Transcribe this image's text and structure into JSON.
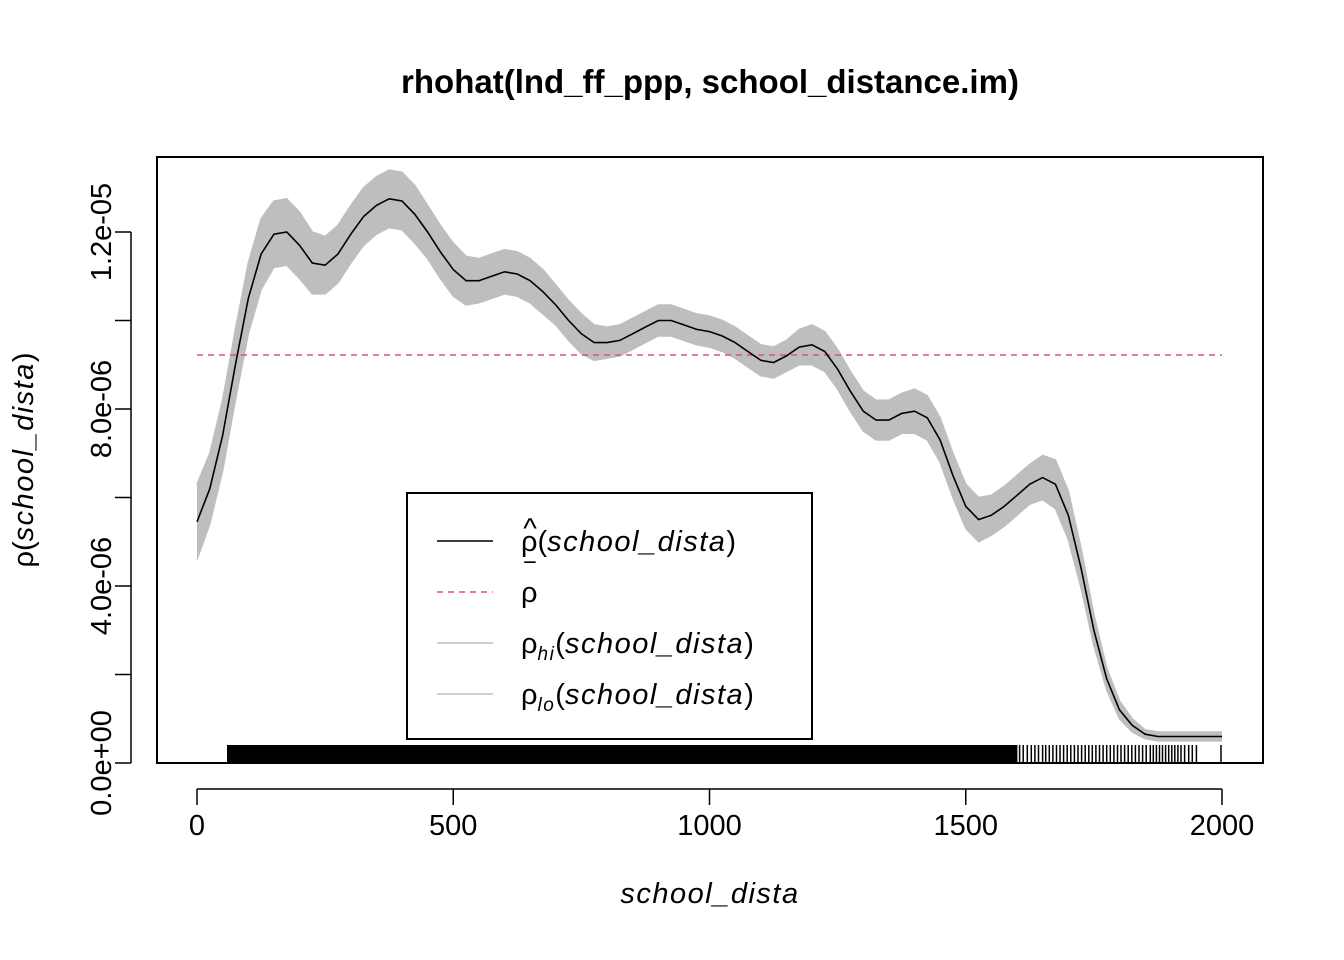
{
  "chart_data": {
    "type": "line",
    "title": "rhohat(lnd_ff_ppp, school_distance.im)",
    "xlabel": "school_dista",
    "ylabel": "ρ(school_dista)",
    "ylabel_parts": {
      "rho": "ρ",
      "open": "(",
      "var": "school_dista",
      "close": ")"
    },
    "xlim": [
      0,
      2000
    ],
    "ylim": [
      0,
      1.32e-05
    ],
    "x_ticks": [
      0,
      500,
      1000,
      1500,
      2000
    ],
    "x_tick_labels": [
      "0",
      "500",
      "1000",
      "1500",
      "2000"
    ],
    "y_ticks": [
      0,
      2e-06,
      4e-06,
      6e-06,
      8e-06,
      1e-05,
      1.2e-05
    ],
    "y_tick_labels": [
      "0.0e+00",
      "4.0e-06",
      "8.0e-06",
      "1.2e-05"
    ],
    "y_labeled_ticks": [
      0,
      4e-06,
      8e-06,
      1.2e-05
    ],
    "grid": false,
    "legend": {
      "placement": "bottom-center",
      "entries": [
        {
          "rho": "ρ",
          "accent": "^",
          "sub": "",
          "open": "(",
          "arg": "school_dista",
          "close": ")",
          "color": "#000000",
          "dash": "solid"
        },
        {
          "rho": "ρ",
          "accent": "‾",
          "sub": "",
          "open": "",
          "arg": "",
          "close": "",
          "color": "#DF536B",
          "dash": "dashed"
        },
        {
          "rho": "ρ",
          "accent": "",
          "sub": "hi",
          "open": "(",
          "arg": "school_dista",
          "close": ")",
          "color": "#BEBEBE",
          "dash": "solid"
        },
        {
          "rho": "ρ",
          "accent": "",
          "sub": "lo",
          "open": "(",
          "arg": "school_dista",
          "close": ")",
          "color": "#BEBEBE",
          "dash": "solid"
        }
      ]
    },
    "series": [
      {
        "name": "ρ̂(school_dista)",
        "color": "#000000",
        "x": [
          0,
          25,
          50,
          75,
          100,
          125,
          150,
          175,
          200,
          225,
          250,
          275,
          300,
          325,
          350,
          375,
          400,
          425,
          450,
          475,
          500,
          525,
          550,
          575,
          600,
          625,
          650,
          675,
          700,
          725,
          750,
          775,
          800,
          825,
          850,
          875,
          900,
          925,
          950,
          975,
          1000,
          1025,
          1050,
          1075,
          1100,
          1125,
          1150,
          1175,
          1200,
          1225,
          1250,
          1275,
          1300,
          1325,
          1350,
          1375,
          1400,
          1425,
          1450,
          1475,
          1500,
          1525,
          1550,
          1575,
          1600,
          1625,
          1650,
          1675,
          1700,
          1725,
          1750,
          1775,
          1800,
          1825,
          1850,
          1875,
          1900,
          1925,
          1950,
          1975,
          2000
        ],
        "values": [
          5.45e-06,
          6.2e-06,
          7.4e-06,
          9e-06,
          1.05e-05,
          1.15e-05,
          1.195e-05,
          1.2e-05,
          1.17e-05,
          1.13e-05,
          1.125e-05,
          1.15e-05,
          1.195e-05,
          1.235e-05,
          1.26e-05,
          1.275e-05,
          1.27e-05,
          1.24e-05,
          1.2e-05,
          1.155e-05,
          1.115e-05,
          1.09e-05,
          1.09e-05,
          1.1e-05,
          1.11e-05,
          1.105e-05,
          1.09e-05,
          1.065e-05,
          1.035e-05,
          1e-05,
          9.7e-06,
          9.5e-06,
          9.5e-06,
          9.55e-06,
          9.7e-06,
          9.85e-06,
          1e-05,
          1e-05,
          9.9e-06,
          9.8e-06,
          9.75e-06,
          9.65e-06,
          9.5e-06,
          9.3e-06,
          9.1e-06,
          9.05e-06,
          9.2e-06,
          9.4e-06,
          9.45e-06,
          9.3e-06,
          8.9e-06,
          8.4e-06,
          7.95e-06,
          7.75e-06,
          7.75e-06,
          7.9e-06,
          7.95e-06,
          7.8e-06,
          7.3e-06,
          6.5e-06,
          5.8e-06,
          5.5e-06,
          5.6e-06,
          5.8e-06,
          6.05e-06,
          6.3e-06,
          6.45e-06,
          6.3e-06,
          5.6e-06,
          4.4e-06,
          3e-06,
          1.9e-06,
          1.2e-06,
          8.5e-07,
          6.5e-07,
          6e-07,
          6e-07,
          6e-07,
          6e-07,
          6e-07,
          6e-07
        ]
      },
      {
        "name": "ρ‾",
        "color": "#DF536B",
        "x": [
          0,
          2000
        ],
        "values": [
          9.22e-06,
          9.22e-06
        ]
      },
      {
        "name": "ρhi(school_dista)",
        "color": "#BEBEBE",
        "x": [
          0,
          25,
          50,
          75,
          100,
          125,
          150,
          175,
          200,
          225,
          250,
          275,
          300,
          325,
          350,
          375,
          400,
          425,
          450,
          475,
          500,
          525,
          550,
          575,
          600,
          625,
          650,
          675,
          700,
          725,
          750,
          775,
          800,
          825,
          850,
          875,
          900,
          925,
          950,
          975,
          1000,
          1025,
          1050,
          1075,
          1100,
          1125,
          1150,
          1175,
          1200,
          1225,
          1250,
          1275,
          1300,
          1325,
          1350,
          1375,
          1400,
          1425,
          1450,
          1475,
          1500,
          1525,
          1550,
          1575,
          1600,
          1625,
          1650,
          1675,
          1700,
          1725,
          1750,
          1775,
          1800,
          1825,
          1850,
          1875,
          1900,
          1925,
          1950,
          1975,
          2000
        ],
        "values": [
          6.3e-06,
          7e-06,
          8.2e-06,
          9.8e-06,
          1.13e-05,
          1.23e-05,
          1.27e-05,
          1.275e-05,
          1.245e-05,
          1.2e-05,
          1.19e-05,
          1.215e-05,
          1.26e-05,
          1.3e-05,
          1.325e-05,
          1.34e-05,
          1.335e-05,
          1.305e-05,
          1.26e-05,
          1.215e-05,
          1.175e-05,
          1.145e-05,
          1.14e-05,
          1.15e-05,
          1.16e-05,
          1.155e-05,
          1.14e-05,
          1.115e-05,
          1.08e-05,
          1.045e-05,
          1.015e-05,
          9.9e-06,
          9.85e-06,
          9.9e-06,
          1.005e-05,
          1.02e-05,
          1.035e-05,
          1.035e-05,
          1.025e-05,
          1.015e-05,
          1.01e-05,
          1e-05,
          9.85e-06,
          9.65e-06,
          9.45e-06,
          9.4e-06,
          9.55e-06,
          9.8e-06,
          9.9e-06,
          9.75e-06,
          9.35e-06,
          8.85e-06,
          8.4e-06,
          8.2e-06,
          8.2e-06,
          8.35e-06,
          8.45e-06,
          8.3e-06,
          7.8e-06,
          7e-06,
          6.3e-06,
          6e-06,
          6.05e-06,
          6.25e-06,
          6.5e-06,
          6.75e-06,
          6.95e-06,
          6.85e-06,
          6.15e-06,
          4.85e-06,
          3.35e-06,
          2.15e-06,
          1.4e-06,
          1e-06,
          7.5e-07,
          7e-07,
          7e-07,
          7e-07,
          7e-07,
          7e-07,
          7e-07
        ]
      },
      {
        "name": "ρlo(school_dista)",
        "color": "#BEBEBE",
        "x": [
          0,
          25,
          50,
          75,
          100,
          125,
          150,
          175,
          200,
          225,
          250,
          275,
          300,
          325,
          350,
          375,
          400,
          425,
          450,
          475,
          500,
          525,
          550,
          575,
          600,
          625,
          650,
          675,
          700,
          725,
          750,
          775,
          800,
          825,
          850,
          875,
          900,
          925,
          950,
          975,
          1000,
          1025,
          1050,
          1075,
          1100,
          1125,
          1150,
          1175,
          1200,
          1225,
          1250,
          1275,
          1300,
          1325,
          1350,
          1375,
          1400,
          1425,
          1450,
          1475,
          1500,
          1525,
          1550,
          1575,
          1600,
          1625,
          1650,
          1675,
          1700,
          1725,
          1750,
          1775,
          1800,
          1825,
          1850,
          1875,
          1900,
          1925,
          1950,
          1975,
          2000
        ],
        "values": [
          4.6e-06,
          5.4e-06,
          6.6e-06,
          8.2e-06,
          9.7e-06,
          1.07e-05,
          1.12e-05,
          1.125e-05,
          1.095e-05,
          1.06e-05,
          1.06e-05,
          1.085e-05,
          1.13e-05,
          1.17e-05,
          1.195e-05,
          1.21e-05,
          1.205e-05,
          1.175e-05,
          1.14e-05,
          1.095e-05,
          1.055e-05,
          1.035e-05,
          1.04e-05,
          1.05e-05,
          1.06e-05,
          1.055e-05,
          1.04e-05,
          1.015e-05,
          9.9e-06,
          9.55e-06,
          9.25e-06,
          9.1e-06,
          9.15e-06,
          9.2e-06,
          9.35e-06,
          9.5e-06,
          9.65e-06,
          9.65e-06,
          9.55e-06,
          9.45e-06,
          9.4e-06,
          9.3e-06,
          9.15e-06,
          8.95e-06,
          8.75e-06,
          8.7e-06,
          8.85e-06,
          9e-06,
          9e-06,
          8.85e-06,
          8.45e-06,
          7.95e-06,
          7.5e-06,
          7.3e-06,
          7.3e-06,
          7.45e-06,
          7.45e-06,
          7.3e-06,
          6.8e-06,
          6e-06,
          5.3e-06,
          5e-06,
          5.15e-06,
          5.35e-06,
          5.6e-06,
          5.85e-06,
          5.95e-06,
          5.75e-06,
          5.05e-06,
          3.95e-06,
          2.65e-06,
          1.65e-06,
          1e-06,
          7e-07,
          5.5e-07,
          5e-07,
          5e-07,
          5e-07,
          5e-07,
          5e-07,
          5e-07
        ]
      }
    ],
    "rug": {
      "color": "#000000",
      "dense_ranges": [
        [
          60,
          1600
        ]
      ],
      "sparse_x": [
        1605,
        1612,
        1620,
        1628,
        1635,
        1642,
        1650,
        1656,
        1663,
        1670,
        1677,
        1684,
        1691,
        1698,
        1705,
        1712,
        1719,
        1726,
        1733,
        1740,
        1747,
        1754,
        1761,
        1768,
        1775,
        1782,
        1789,
        1796,
        1803,
        1810,
        1817,
        1824,
        1831,
        1838,
        1845,
        1852,
        1860,
        1866,
        1872,
        1878,
        1884,
        1890,
        1896,
        1902,
        1908,
        1914,
        1920,
        1927,
        1935,
        1942,
        1950,
        1998
      ]
    }
  }
}
